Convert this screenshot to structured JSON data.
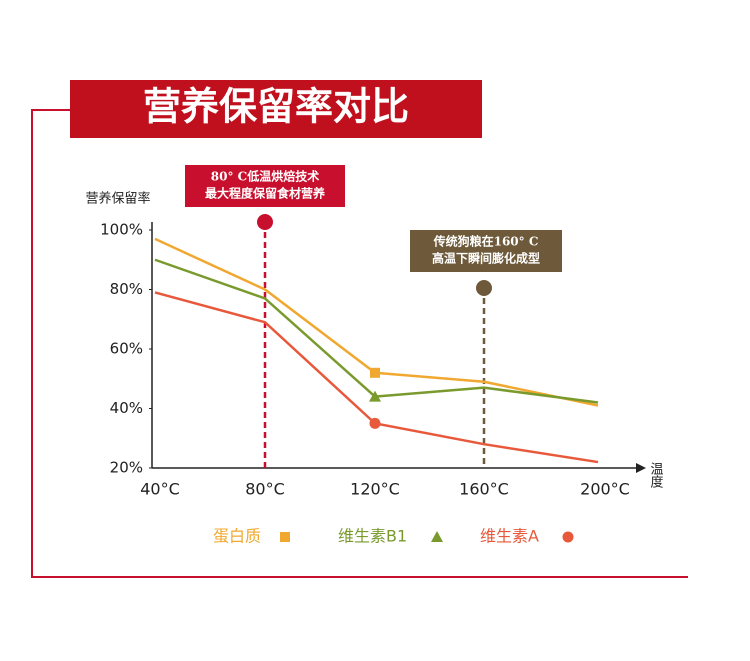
{
  "chart_data": {
    "type": "line",
    "title": "营养保留率对比",
    "y_label": "营养保留率",
    "x_label": "温度",
    "categories": [
      "40°C",
      "80°C",
      "120°C",
      "160°C",
      "200°C"
    ],
    "ylim": [
      20,
      100
    ],
    "yticks": [
      {
        "value": 20,
        "label": "20%"
      },
      {
        "value": 40,
        "label": "40%"
      },
      {
        "value": 60,
        "label": "60%"
      },
      {
        "value": 80,
        "label": "80%"
      },
      {
        "value": 100,
        "label": "100%"
      }
    ],
    "series": [
      {
        "name": "蛋白质",
        "color": "#f0a830",
        "marker": "square",
        "marker_at": "120°C",
        "values": [
          97,
          80,
          52,
          49,
          41
        ]
      },
      {
        "name": "维生素B1",
        "color": "#7a9a2e",
        "marker": "triangle",
        "marker_at": "120°C",
        "values": [
          90,
          77,
          44,
          47,
          42
        ]
      },
      {
        "name": "维生素A",
        "color": "#e8583a",
        "marker": "circle",
        "marker_at": "120°C",
        "values": [
          79,
          69,
          35,
          28,
          22
        ]
      }
    ],
    "annotations": [
      {
        "category": "80°C",
        "color": "#c8102e",
        "lines": [
          "80° C低温烘焙技术",
          "最大程度保留食材营养"
        ]
      },
      {
        "category": "160°C",
        "color": "#6e5a3a",
        "lines": [
          "传统狗粮在160° C",
          "高温下瞬间膨化成型"
        ]
      }
    ]
  }
}
